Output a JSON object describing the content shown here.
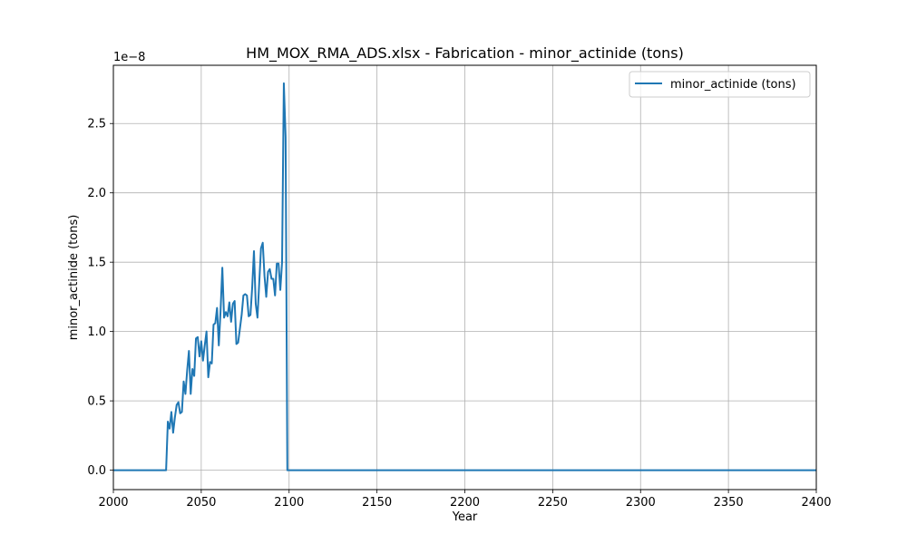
{
  "chart_data": {
    "type": "line",
    "title": "HM_MOX_RMA_ADS.xlsx - Fabrication - minor_actinide (tons)",
    "xlabel": "Year",
    "ylabel": "minor_actinide (tons)",
    "y_offset_label": "1e−8",
    "y_scale": 1e-08,
    "xlim": [
      2000,
      2400
    ],
    "ylim": [
      -0.14,
      2.92
    ],
    "x_ticks": [
      2000,
      2050,
      2100,
      2150,
      2200,
      2250,
      2300,
      2350,
      2400
    ],
    "y_ticks": [
      0.0,
      0.5,
      1.0,
      1.5,
      2.0,
      2.5
    ],
    "x_tick_labels": [
      "2000",
      "2050",
      "2100",
      "2150",
      "2200",
      "2250",
      "2300",
      "2350",
      "2400"
    ],
    "y_tick_labels": [
      "0.0",
      "0.5",
      "1.0",
      "1.5",
      "2.0",
      "2.5"
    ],
    "grid": true,
    "legend_position": "top-right",
    "color": "#1f77b4",
    "series": [
      {
        "name": "minor_actinide (tons)",
        "x": [
          2000,
          2030,
          2031,
          2032,
          2033,
          2034,
          2035,
          2036,
          2037,
          2038,
          2039,
          2040,
          2041,
          2042,
          2043,
          2044,
          2045,
          2046,
          2047,
          2048,
          2049,
          2050,
          2051,
          2052,
          2053,
          2054,
          2055,
          2056,
          2057,
          2058,
          2059,
          2060,
          2061,
          2062,
          2063,
          2064,
          2065,
          2066,
          2067,
          2068,
          2069,
          2070,
          2071,
          2072,
          2073,
          2074,
          2075,
          2076,
          2077,
          2078,
          2079,
          2080,
          2081,
          2082,
          2083,
          2084,
          2085,
          2086,
          2087,
          2088,
          2089,
          2090,
          2091,
          2092,
          2093,
          2094,
          2095,
          2096,
          2097,
          2098,
          2099,
          2100,
          2101,
          2400
        ],
        "y": [
          0.0,
          0.0,
          0.35,
          0.3,
          0.42,
          0.27,
          0.38,
          0.47,
          0.49,
          0.41,
          0.42,
          0.64,
          0.55,
          0.72,
          0.86,
          0.55,
          0.73,
          0.68,
          0.95,
          0.96,
          0.82,
          0.93,
          0.79,
          0.9,
          1.0,
          0.67,
          0.78,
          0.77,
          1.05,
          1.06,
          1.17,
          0.9,
          1.15,
          1.46,
          1.1,
          1.14,
          1.11,
          1.21,
          1.07,
          1.2,
          1.22,
          0.91,
          0.92,
          1.02,
          1.12,
          1.26,
          1.27,
          1.26,
          1.11,
          1.12,
          1.32,
          1.58,
          1.2,
          1.1,
          1.35,
          1.6,
          1.64,
          1.4,
          1.25,
          1.43,
          1.45,
          1.38,
          1.38,
          1.26,
          1.49,
          1.49,
          1.3,
          1.5,
          2.79,
          2.4,
          0.0,
          0.0,
          0.0,
          0.0
        ]
      }
    ]
  }
}
